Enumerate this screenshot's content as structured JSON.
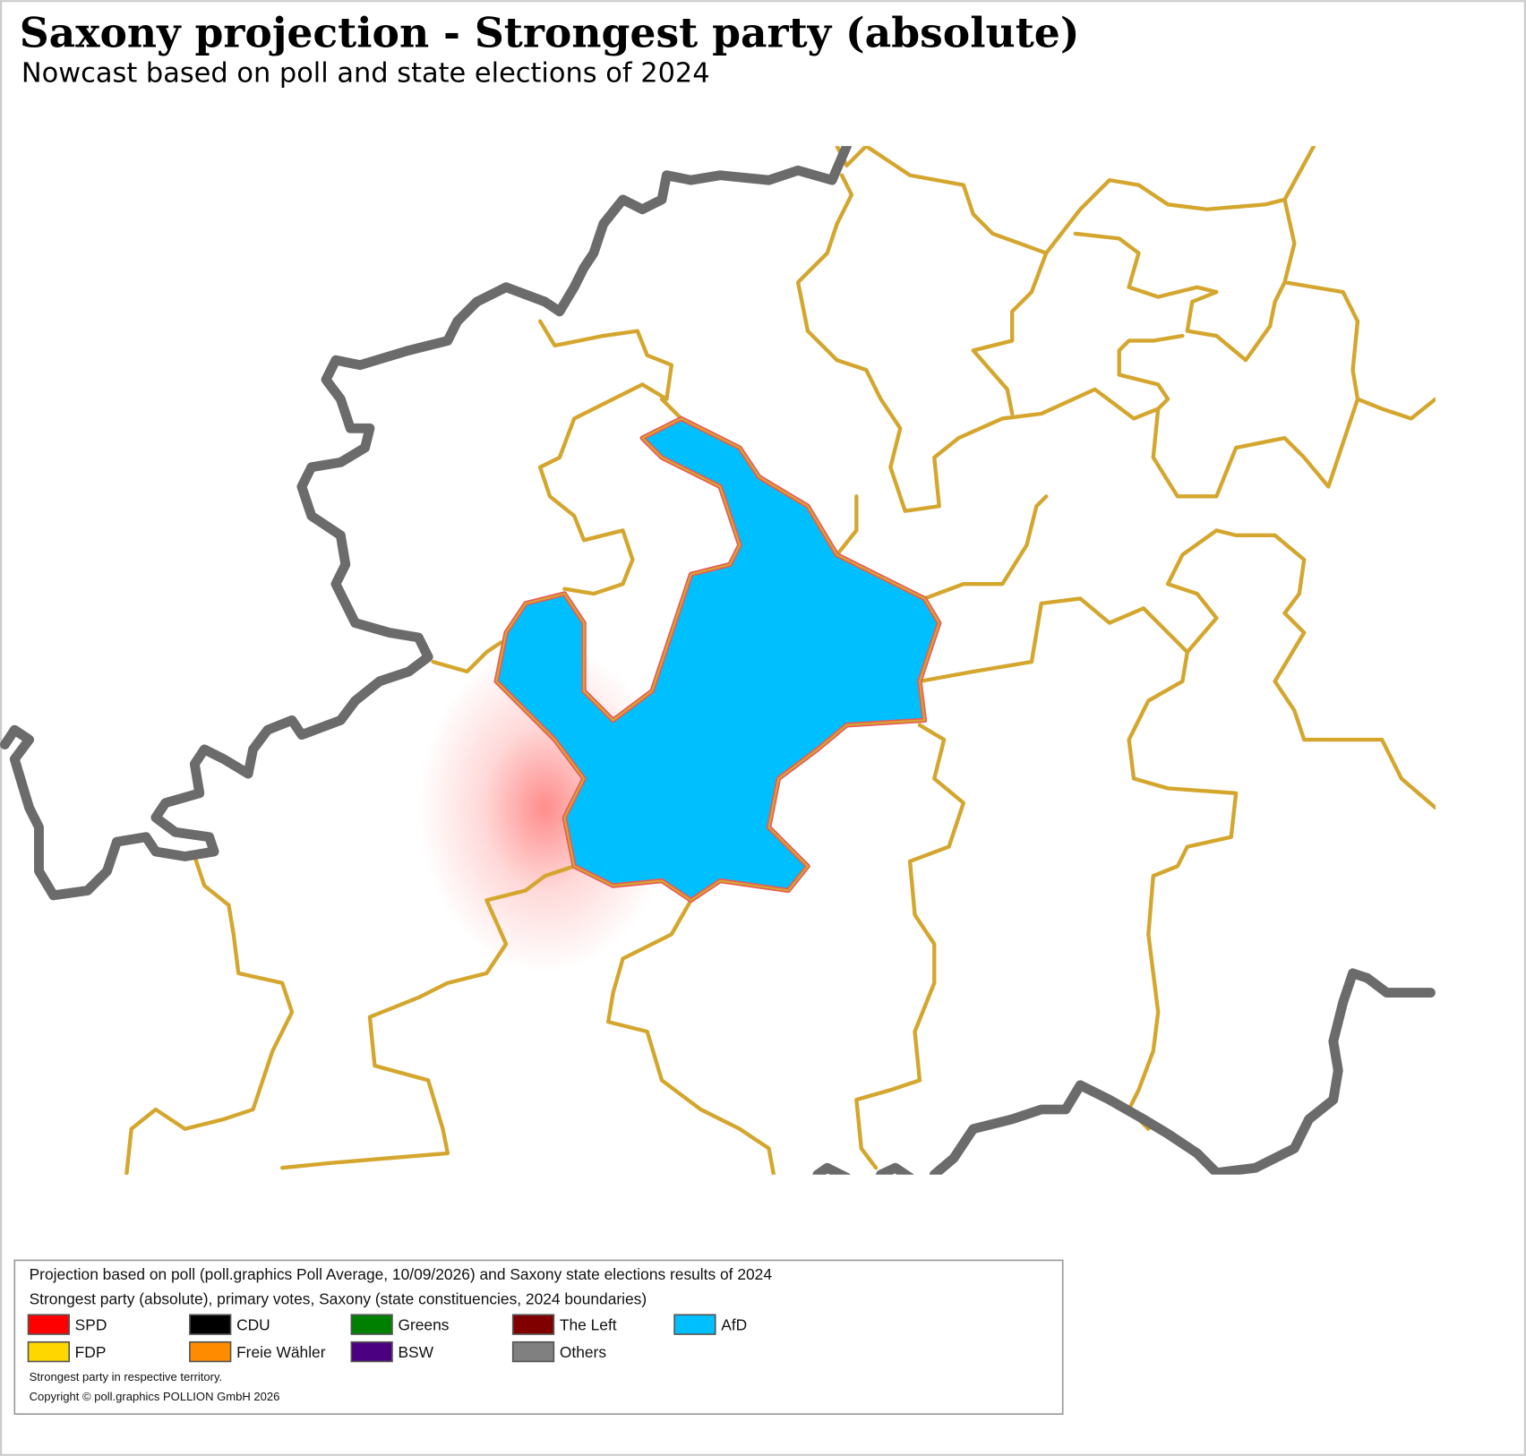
{
  "header": {
    "title": "Saxony projection - Strongest party (absolute)",
    "subtitle": "Nowcast based on poll and state elections of 2024"
  },
  "legend": {
    "lines": [
      "Projection based on poll (poll.graphics Poll Average, 10/09/2026) and Saxony state elections results of 2024",
      "Strongest party (absolute), primary votes, Saxony (state constituencies, 2024 boundaries)"
    ],
    "parties": [
      {
        "name": "SPD",
        "color": "#ff0000"
      },
      {
        "name": "CDU",
        "color": "#000000"
      },
      {
        "name": "Greens",
        "color": "#008000"
      },
      {
        "name": "The Left",
        "color": "#800000"
      },
      {
        "name": "AfD",
        "color": "#00bfff"
      },
      {
        "name": "FDP",
        "color": "#ffd700"
      },
      {
        "name": "Freie Wähler",
        "color": "#ff8c00"
      },
      {
        "name": "BSW",
        "color": "#4b0082"
      },
      {
        "name": "Others",
        "color": "#808080"
      }
    ],
    "notes": [
      "Strongest party in respective territory.",
      "Copyright © poll.graphics POLLION GmbH 2026"
    ]
  }
}
